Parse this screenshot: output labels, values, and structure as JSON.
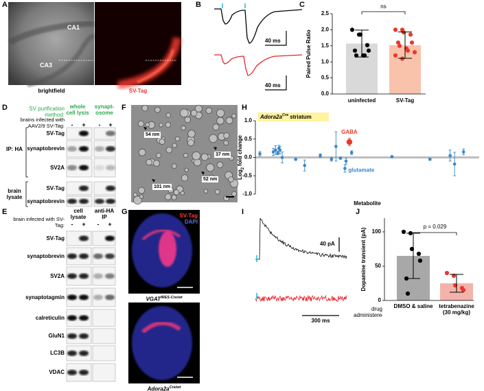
{
  "panel_labels": [
    "A",
    "B",
    "C",
    "D",
    "E",
    "F",
    "G",
    "H",
    "I",
    "J"
  ],
  "panel_a": {
    "regions": [
      "CA1",
      "CA3"
    ],
    "captions": [
      "brightfield",
      "SV-Tag"
    ]
  },
  "panel_b": {
    "scale_bars": [
      "40 ms",
      "40 ms"
    ]
  },
  "panel_d": {
    "method_label": "SV purification method:",
    "methods": [
      "whole cell lysis",
      "synapt-osome"
    ],
    "infection_label": "brains infected with AAV2/9 SV-Tag:",
    "lanes": [
      "-",
      "+",
      "-",
      "+"
    ],
    "groups": [
      {
        "label": "IP: HA",
        "rows": [
          "SV-Tag",
          "synaptobrevin",
          "SV2A"
        ]
      },
      {
        "label": "brain lysate",
        "rows": [
          "SV-Tag",
          "synaptobrevin"
        ]
      }
    ]
  },
  "panel_e": {
    "infection_label": "brain infected with SV-Tag:",
    "groups": [
      "cell lysate",
      "anti-HA IP"
    ],
    "lanes": [
      "-",
      "+",
      "-",
      "+"
    ],
    "rows": [
      "SV-Tag",
      "synaptobrevin",
      "SV2A",
      "synaptotagmin",
      "calreticulin",
      "GluN1",
      "LC3B",
      "VDAC"
    ]
  },
  "panel_f": {
    "sizes": [
      "54 nm",
      "101 nm",
      "52 nm",
      "37 nm"
    ]
  },
  "panel_g": {
    "channels": [
      "SV-Tag",
      "DAPI"
    ],
    "captions": [
      {
        "gene": "VGAT",
        "allele": "IRES-Cre/wt"
      },
      {
        "gene": "Adora2a",
        "allele": "Cre/wt"
      }
    ]
  },
  "panel_i": {
    "scale_bars": [
      "40 pA",
      "300 ms"
    ]
  },
  "chart_data": [
    {
      "type": "bar",
      "ylabel": "Paired Pulse Ratio",
      "categories": [
        "uninfected",
        "SV-Tag"
      ],
      "values": [
        1.57,
        1.52
      ],
      "errors": [
        0.42,
        0.41
      ],
      "points": [
        [
          2.0,
          1.85,
          1.85,
          1.52,
          1.35,
          1.35,
          1.2,
          1.2,
          1.2
        ],
        [
          2.0,
          2.0,
          1.92,
          1.85,
          1.6,
          1.6,
          1.5,
          1.42,
          1.35,
          1.3,
          1.2,
          1.1
        ]
      ],
      "colors": [
        "#d9d9d9",
        "#f8c2ab"
      ],
      "point_colors": [
        "#000000",
        "#e8392c"
      ],
      "ylim": [
        0,
        2.5
      ],
      "yticks": [
        {
          "value": 0,
          "label": "0.0"
        },
        0.5,
        {
          "value": 1,
          "label": "1.0"
        },
        1.5,
        {
          "value": 2,
          "label": "2.0"
        },
        2.5
      ],
      "annotation": "ns"
    },
    {
      "type": "scatter",
      "title": "Adora2a",
      "title_superscript": "Cre",
      "title_suffix": "striatum",
      "title_color": "#fff3a0",
      "ylabel": "Log",
      "ylabel_subscript": "2",
      "ylabel_suffix": "fold change",
      "xlabel": "Metabolite",
      "x": [
        2,
        8,
        9,
        10,
        10.5,
        11,
        12,
        18,
        22,
        29,
        34,
        36,
        38,
        40,
        40.5,
        42,
        43,
        61,
        78,
        87,
        89,
        93
      ],
      "values": [
        0.1,
        0.15,
        0.2,
        0.12,
        0.25,
        0.2,
        0.0,
        -0.05,
        -0.22,
        0.05,
        -0.05,
        0.3,
        -0.02,
        -0.3,
        -0.1,
        0.42,
        0.13,
        0.02,
        -0.05,
        0.05,
        -0.18,
        0.15
      ],
      "errors": [
        0.06,
        0.1,
        0.12,
        0.05,
        0.08,
        0.1,
        0.15,
        0.03,
        0.15,
        0.05,
        0.05,
        0.4,
        0.03,
        0.1,
        0.08,
        0.1,
        0.05,
        0.03,
        0.03,
        0.15,
        0.32,
        0.08
      ],
      "color": "#3a87c8",
      "highlight": {
        "point": 15,
        "color": "#e8392c"
      },
      "annotations": [
        {
          "text": "GABA",
          "point": 15,
          "color": "#e8392c"
        },
        {
          "text": "glutamate",
          "point": 13,
          "color": "#3a87c8"
        }
      ],
      "xlim": [
        0,
        100
      ],
      "ylim": [
        -1,
        1
      ],
      "yticks": [
        {
          "value": -1,
          "label": "-1.0"
        },
        -0.5,
        {
          "value": 0,
          "label": "0.0"
        },
        0.5,
        {
          "value": 1,
          "label": "1.0"
        }
      ],
      "zero_line": true
    },
    {
      "type": "bar",
      "ylabel": "Dopamine transient (pA)",
      "xlabel": "drug administered:",
      "categories": [
        "DMSO & saline",
        "tetrabenazine (30 mg/kg)"
      ],
      "values": [
        65,
        25
      ],
      "errors": [
        33,
        13
      ],
      "points": [
        [
          100,
          98,
          75,
          68,
          58,
          32,
          10
        ],
        [
          40,
          36,
          22,
          18,
          15
        ]
      ],
      "colors": [
        "#a8a8a8",
        "#f3b3ab"
      ],
      "point_colors": [
        "#000000",
        "#e8392c"
      ],
      "ylim": [
        0,
        120
      ],
      "yticks": [
        0,
        50,
        100
      ],
      "annotation": "p = 0.029"
    }
  ]
}
